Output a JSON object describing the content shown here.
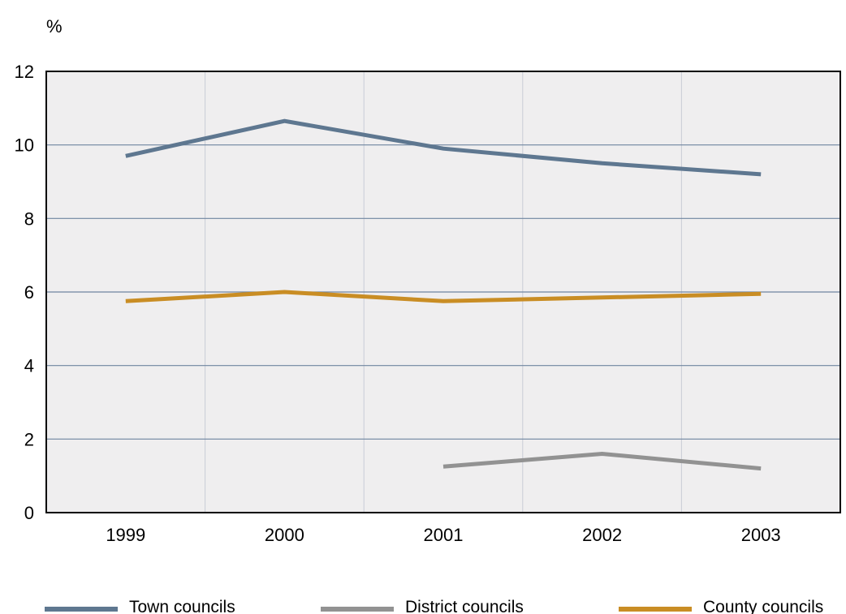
{
  "chart_data": {
    "type": "line",
    "y_unit": "%",
    "categories": [
      "1999",
      "2000",
      "2001",
      "2002",
      "2003"
    ],
    "ylim": [
      0,
      12
    ],
    "yticks": [
      0,
      2,
      4,
      6,
      8,
      10,
      12
    ],
    "grid": true,
    "legend_position": "bottom",
    "background": "#efeeef",
    "series": [
      {
        "name": "Town councils",
        "color": "#5e7790",
        "values": [
          9.7,
          10.65,
          9.9,
          9.5,
          9.2
        ]
      },
      {
        "name": "District councils",
        "color": "#929292",
        "values": [
          null,
          null,
          1.25,
          1.6,
          1.2
        ]
      },
      {
        "name": "County councils",
        "color": "#c98d24",
        "values": [
          5.75,
          6.0,
          5.75,
          5.85,
          5.95
        ]
      }
    ]
  }
}
